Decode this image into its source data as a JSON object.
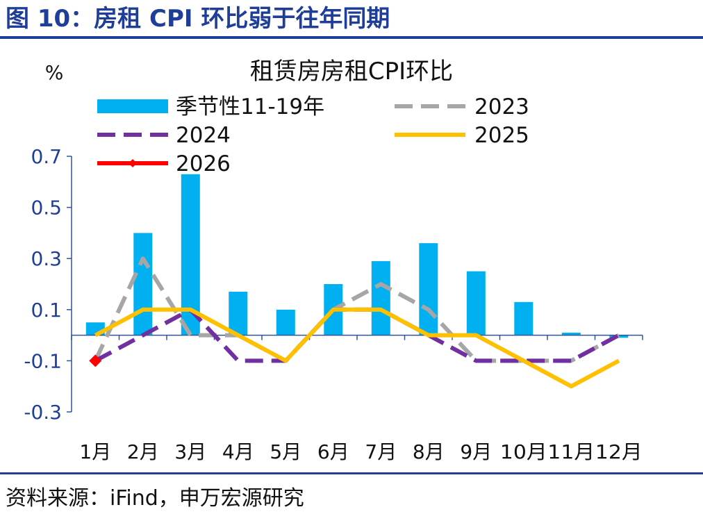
{
  "figure": {
    "title": "图 10：房租 CPI 环比弱于往年同期",
    "source": "资料来源：iFind，申万宏源研究"
  },
  "colors": {
    "brand": "#1f3e98",
    "bar": "#00b0f0",
    "s2023": "#a6a6a6",
    "s2024": "#7030a0",
    "s2025": "#ffc000",
    "s2026": "#ff0000",
    "axis": "#2f5597",
    "text": "#111111",
    "tick": "#1f3e98"
  },
  "chart_data": {
    "type": "bar",
    "title": "租赁房房租CPI环比",
    "unit_label": "%",
    "categories": [
      "1月",
      "2月",
      "3月",
      "4月",
      "5月",
      "6月",
      "7月",
      "8月",
      "9月",
      "10月",
      "11月",
      "12月"
    ],
    "ylim": [
      -0.3,
      0.7
    ],
    "yticks": [
      "0.7",
      "0.5",
      "0.3",
      "0.1",
      "-0.1",
      "-0.3"
    ],
    "grid": false,
    "legend_position": "top",
    "series": [
      {
        "name": "季节性11-19年",
        "kind": "bar",
        "values": [
          0.05,
          0.4,
          0.63,
          0.17,
          0.1,
          0.2,
          0.29,
          0.36,
          0.25,
          0.13,
          0.01,
          -0.01
        ]
      },
      {
        "name": "2023",
        "kind": "dashed-line",
        "values": [
          -0.1,
          0.3,
          0.0,
          0.0,
          -0.1,
          0.1,
          0.2,
          0.1,
          -0.1,
          -0.1,
          -0.1,
          0.0
        ]
      },
      {
        "name": "2024",
        "kind": "dashed-line",
        "values": [
          -0.1,
          0.0,
          0.1,
          -0.1,
          -0.1,
          0.1,
          0.1,
          0.0,
          -0.1,
          -0.1,
          -0.1,
          0.0
        ]
      },
      {
        "name": "2025",
        "kind": "line",
        "values": [
          0.0,
          0.1,
          0.1,
          0.0,
          -0.1,
          0.1,
          0.1,
          0.0,
          0.0,
          -0.1,
          -0.2,
          -0.1
        ]
      },
      {
        "name": "2026",
        "kind": "marker",
        "values": [
          -0.1,
          null,
          null,
          null,
          null,
          null,
          null,
          null,
          null,
          null,
          null,
          null
        ]
      }
    ]
  }
}
